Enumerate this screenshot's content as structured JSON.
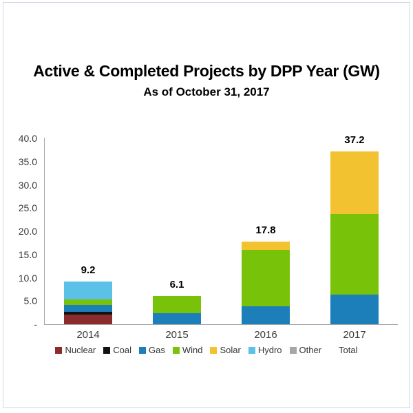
{
  "title": "Active & Completed Projects by DPP Year (GW)",
  "subtitle": "As of October 31, 2017",
  "chart_data": {
    "type": "bar",
    "stacked": true,
    "title": "Active & Completed Projects by DPP Year (GW)",
    "subtitle": "As of October 31, 2017",
    "xlabel": "",
    "ylabel": "",
    "units": "GW",
    "ylim": [
      0,
      40
    ],
    "grid": false,
    "legend_position": "bottom",
    "y_ticks": [
      {
        "label": "40.0",
        "value": 40
      },
      {
        "label": "35.0",
        "value": 35
      },
      {
        "label": "30.0",
        "value": 30
      },
      {
        "label": "25.0",
        "value": 25
      },
      {
        "label": "20.0",
        "value": 20
      },
      {
        "label": "15.0",
        "value": 15
      },
      {
        "label": "10.0",
        "value": 10
      },
      {
        "label": "5.0",
        "value": 5
      },
      {
        "label": "-",
        "value": 0
      }
    ],
    "categories": [
      "2014",
      "2015",
      "2016",
      "2017"
    ],
    "series": [
      {
        "name": "Nuclear",
        "color": "#8b2b2b",
        "values": [
          2.1,
          0,
          0,
          0
        ]
      },
      {
        "name": "Coal",
        "color": "#121212",
        "values": [
          0.5,
          0,
          0,
          0
        ]
      },
      {
        "name": "Gas",
        "color": "#1c7fb9",
        "values": [
          1.5,
          2.4,
          3.8,
          6.4
        ]
      },
      {
        "name": "Wind",
        "color": "#78c309",
        "values": [
          1.3,
          3.7,
          12.2,
          17.3
        ]
      },
      {
        "name": "Solar",
        "color": "#f2c230",
        "values": [
          0,
          0,
          1.8,
          13.5
        ]
      },
      {
        "name": "Hydro",
        "color": "#5bc1e7",
        "values": [
          3.8,
          0,
          0,
          0
        ]
      },
      {
        "name": "Other",
        "color": "#a6a6a6",
        "values": [
          0,
          0,
          0,
          0
        ]
      }
    ],
    "total_labels": [
      "9.2",
      "6.1",
      "17.8",
      "37.2"
    ],
    "legend_items": [
      {
        "label": "Nuclear",
        "color": "#8b2b2b"
      },
      {
        "label": "Coal",
        "color": "#121212"
      },
      {
        "label": "Gas",
        "color": "#1c7fb9"
      },
      {
        "label": "Wind",
        "color": "#78c309"
      },
      {
        "label": "Solar",
        "color": "#f2c230"
      },
      {
        "label": "Hydro",
        "color": "#5bc1e7"
      },
      {
        "label": "Other",
        "color": "#a6a6a6"
      },
      {
        "label": "Total",
        "color": ""
      }
    ]
  }
}
